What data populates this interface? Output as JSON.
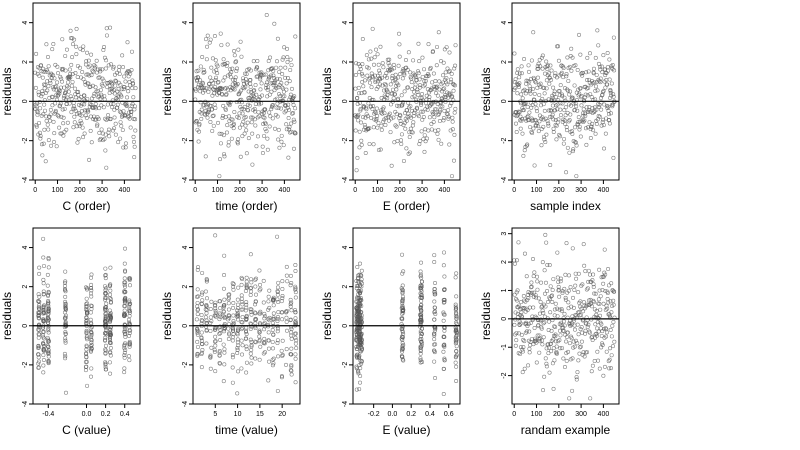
{
  "chart_data": [
    {
      "type": "scatter",
      "xlabel": "C (order)",
      "ylabel": "residuals",
      "xlim": [
        -10,
        470
      ],
      "ylim": [
        -4,
        5
      ],
      "xticks": [
        0,
        100,
        200,
        300,
        400
      ],
      "xtick_labels": [
        "0",
        "100",
        "200",
        "300",
        "400"
      ],
      "yticks": [
        -4,
        -2,
        0,
        2,
        4
      ],
      "ytick_labels": [
        "-4",
        "-2",
        "0",
        "2",
        "4"
      ],
      "hline": 0,
      "points_kind": "sample",
      "n_points": 450,
      "x": [
        0,
        450
      ],
      "y_center": 0.2,
      "y_spread": 1.3
    },
    {
      "type": "scatter",
      "xlabel": "time (order)",
      "ylabel": "residuals",
      "xlim": [
        -10,
        470
      ],
      "ylim": [
        -4,
        5
      ],
      "xticks": [
        0,
        100,
        200,
        300,
        400
      ],
      "xtick_labels": [
        "0",
        "100",
        "200",
        "300",
        "400"
      ],
      "yticks": [
        -4,
        -2,
        0,
        2,
        4
      ],
      "ytick_labels": [
        "-4",
        "-2",
        "0",
        "2",
        "4"
      ],
      "hline": 0,
      "points_kind": "sample",
      "n_points": 450,
      "x": [
        0,
        450
      ],
      "y_center": 0.2,
      "y_spread": 1.3
    },
    {
      "type": "scatter",
      "xlabel": "E (order)",
      "ylabel": "residuals",
      "xlim": [
        -10,
        470
      ],
      "ylim": [
        -4,
        5
      ],
      "xticks": [
        0,
        100,
        200,
        300,
        400
      ],
      "xtick_labels": [
        "0",
        "100",
        "200",
        "300",
        "400"
      ],
      "yticks": [
        -4,
        -2,
        0,
        2,
        4
      ],
      "ytick_labels": [
        "-4",
        "-2",
        "0",
        "2",
        "4"
      ],
      "hline": 0,
      "points_kind": "sample",
      "n_points": 450,
      "x": [
        0,
        450
      ],
      "y_center": 0.2,
      "y_spread": 1.3
    },
    {
      "type": "scatter",
      "xlabel": "sample index",
      "ylabel": "residuals",
      "xlim": [
        -10,
        470
      ],
      "ylim": [
        -4,
        5
      ],
      "xticks": [
        0,
        100,
        200,
        300,
        400
      ],
      "xtick_labels": [
        "0",
        "100",
        "200",
        "300",
        "400"
      ],
      "yticks": [
        -4,
        -2,
        0,
        2,
        4
      ],
      "ytick_labels": [
        "-4",
        "-2",
        "0",
        "2",
        "4"
      ],
      "hline": 0,
      "points_kind": "sample",
      "n_points": 450,
      "x": [
        0,
        450
      ],
      "y_center": 0.2,
      "y_spread": 1.3
    },
    {
      "type": "scatter",
      "xlabel": "C (value)",
      "ylabel": "residuals",
      "xlim": [
        -0.56,
        0.56
      ],
      "ylim": [
        -4,
        5
      ],
      "xticks": [
        -0.4,
        0.0,
        0.2,
        0.4
      ],
      "xtick_labels": [
        "-0.4",
        "0.0",
        "0.2",
        "0.4"
      ],
      "yticks": [
        -4,
        -2,
        0,
        2,
        4
      ],
      "ytick_labels": [
        "-4",
        "-2",
        "0",
        "2",
        "4"
      ],
      "hline": 0,
      "points_kind": "columns",
      "n_points": 450,
      "x_levels": [
        -0.5,
        -0.45,
        -0.4,
        -0.22,
        0.0,
        0.05,
        0.2,
        0.25,
        0.4,
        0.45
      ],
      "y_center": 0.2,
      "y_spread": 1.3
    },
    {
      "type": "scatter",
      "xlabel": "time (value)",
      "ylabel": "residuals",
      "xlim": [
        0,
        24
      ],
      "ylim": [
        -4,
        5
      ],
      "xticks": [
        5,
        10,
        15,
        20
      ],
      "xtick_labels": [
        "5",
        "10",
        "15",
        "20"
      ],
      "yticks": [
        -4,
        -2,
        0,
        2,
        4
      ],
      "ytick_labels": [
        "-4",
        "-2",
        "0",
        "2",
        "4"
      ],
      "hline": 0,
      "points_kind": "columns",
      "n_points": 450,
      "x_levels": [
        1,
        2,
        3,
        4,
        5,
        6,
        7,
        8,
        9,
        10,
        11,
        12,
        13,
        14,
        15,
        16,
        17,
        18,
        19,
        20,
        21,
        22,
        23
      ],
      "y_center": 0.2,
      "y_spread": 1.3
    },
    {
      "type": "scatter",
      "xlabel": "E (value)",
      "ylabel": "residuals",
      "xlim": [
        -0.42,
        0.72
      ],
      "ylim": [
        -4,
        5
      ],
      "xticks": [
        -0.2,
        0.0,
        0.2,
        0.4,
        0.6
      ],
      "xtick_labels": [
        "-0.2",
        "0.0",
        "0.2",
        "0.4",
        "0.6"
      ],
      "yticks": [
        -4,
        -2,
        0,
        2,
        4
      ],
      "ytick_labels": [
        "-4",
        "-2",
        "0",
        "2",
        "4"
      ],
      "hline": 0,
      "points_kind": "columns",
      "n_points": 450,
      "x_levels": [
        -0.38,
        -0.37,
        -0.36,
        -0.35,
        -0.34,
        -0.33,
        0.1,
        0.11,
        0.3,
        0.31,
        0.45,
        0.55,
        0.68
      ],
      "y_center": 0.2,
      "y_spread": 1.3
    },
    {
      "type": "scatter",
      "xlabel": "randam example",
      "ylabel": "residuals",
      "xlim": [
        -10,
        470
      ],
      "ylim": [
        -3,
        3.2
      ],
      "xticks": [
        0,
        100,
        200,
        300,
        400
      ],
      "xtick_labels": [
        "0",
        "100",
        "200",
        "300",
        "400"
      ],
      "yticks": [
        -2,
        -1,
        0,
        1,
        2,
        3
      ],
      "ytick_labels": [
        "-2",
        "-1",
        "0",
        "1",
        "2",
        "3"
      ],
      "hline": 0,
      "points_kind": "sample",
      "n_points": 450,
      "x": [
        0,
        450
      ],
      "y_center": 0.0,
      "y_spread": 1.0
    }
  ]
}
